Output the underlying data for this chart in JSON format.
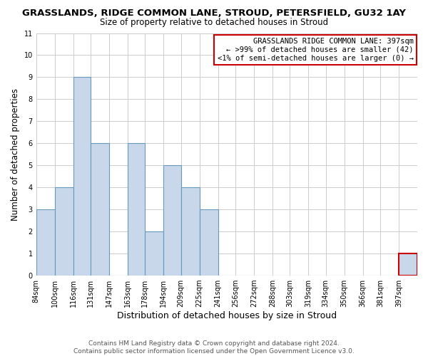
{
  "title": "GRASSLANDS, RIDGE COMMON LANE, STROUD, PETERSFIELD, GU32 1AY",
  "subtitle": "Size of property relative to detached houses in Stroud",
  "xlabel": "Distribution of detached houses by size in Stroud",
  "ylabel": "Number of detached properties",
  "bar_edges": [
    84,
    100,
    116,
    131,
    147,
    163,
    178,
    194,
    209,
    225,
    241,
    256,
    272,
    288,
    303,
    319,
    334,
    350,
    366,
    381,
    397,
    413
  ],
  "bar_heights": [
    3,
    4,
    9,
    6,
    0,
    6,
    2,
    5,
    4,
    3,
    0,
    0,
    0,
    0,
    0,
    0,
    0,
    0,
    0,
    0,
    1
  ],
  "bar_color": "#c8d8ea",
  "bar_edgecolor": "#6699bb",
  "highlight_bar_index": 20,
  "highlight_bar_edgecolor": "#cc0000",
  "annotation_box_text": "GRASSLANDS RIDGE COMMON LANE: 397sqm\n← >99% of detached houses are smaller (42)\n<1% of semi-detached houses are larger (0) →",
  "annotation_box_edgecolor": "#cc0000",
  "ylim": [
    0,
    11
  ],
  "yticks": [
    0,
    1,
    2,
    3,
    4,
    5,
    6,
    7,
    8,
    9,
    10,
    11
  ],
  "tick_labels": [
    "84sqm",
    "100sqm",
    "116sqm",
    "131sqm",
    "147sqm",
    "163sqm",
    "178sqm",
    "194sqm",
    "209sqm",
    "225sqm",
    "241sqm",
    "256sqm",
    "272sqm",
    "288sqm",
    "303sqm",
    "319sqm",
    "334sqm",
    "350sqm",
    "366sqm",
    "381sqm",
    "397sqm"
  ],
  "footnote": "Contains HM Land Registry data © Crown copyright and database right 2024.\nContains public sector information licensed under the Open Government Licence v3.0.",
  "title_fontsize": 9.5,
  "subtitle_fontsize": 8.5,
  "xlabel_fontsize": 9,
  "ylabel_fontsize": 8.5,
  "tick_fontsize": 7,
  "annotation_fontsize": 7.5,
  "footnote_fontsize": 6.5,
  "background_color": "#ffffff",
  "plot_bg_color": "#ffffff",
  "grid_color": "#cccccc",
  "fig_width": 6.0,
  "fig_height": 5.0
}
